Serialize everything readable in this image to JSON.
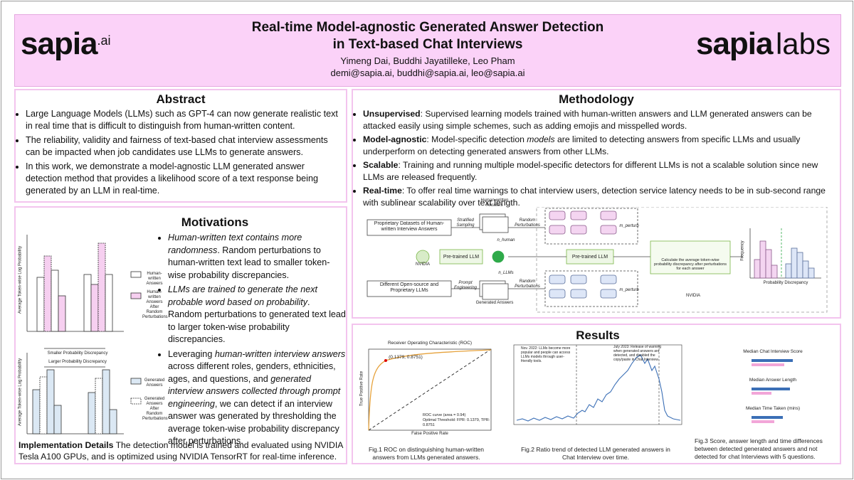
{
  "header": {
    "logo_left": "sapia",
    "logo_left_suffix": ".ai",
    "title_lines": [
      "Real-time Model-agnostic Generated Answer Detection",
      "in Text-based Chat Interviews"
    ],
    "authors": "Yimeng Dai, Buddhi Jayatilleke, Leo Pham",
    "emails": "demi@sapia.ai, buddhi@sapia.ai, leo@sapia.ai",
    "logo_right": "sapia",
    "logo_right_suffix": "labs"
  },
  "abstract": {
    "heading": "Abstract",
    "bullets": [
      "Large Language Models (LLMs) such as GPT-4 can now generate realistic text in real time that is difficult to distinguish from human-written content.",
      "The reliability, validity and fairness of text-based chat interview assessments can be impacted when job candidates use LLMs to generate answers.",
      "In this work, we demonstrate a model-agnostic LLM generated answer detection method that provides a likelihood score of a text response being generated by an LLM in real-time."
    ]
  },
  "motivations": {
    "heading": "Motivations",
    "figure": {
      "y_label": "Average Token-wise Log Probability",
      "legend_top": [
        "Human-written Answers",
        "Human-written Answers After Random Perturbations"
      ],
      "smaller": "Smaller Probability Discrepancy",
      "larger": "Larger Probability Discrepancy",
      "legend_bottom": [
        "Generated Answers",
        "Generated Answers After Random Perturbations"
      ]
    },
    "bullets": [
      [
        {
          "text": "Human-written text contains more randomness",
          "italic": true
        },
        {
          "text": ". Random perturbations to human-written text lead to smaller token-wise probability discrepancies."
        }
      ],
      [
        {
          "text": "LLMs are trained to generate the next probable word based on probability",
          "italic": true
        },
        {
          "text": ". Random perturbations to generated text lead to larger token-wise probability discrepancies."
        }
      ],
      [
        {
          "text": "Leveraging "
        },
        {
          "text": "human-written interview answers",
          "italic": true
        },
        {
          "text": " across different roles, genders, ethnicities, ages, and questions, and "
        },
        {
          "text": "generated interview answers collected through prompt engineering",
          "italic": true
        },
        {
          "text": ", we can detect if an interview answer was generated by thresholding the average token-wise probability discrepancy after perturbations."
        }
      ]
    ]
  },
  "implementation": {
    "term": "Implementation Details",
    "text": " The detection model is trained and evaluated using NVIDIA Tesla A100 GPUs, and is optimized using NVIDIA TensorRT for real-time inference."
  },
  "methodology": {
    "heading": "Methodology",
    "items": [
      {
        "term": "Unsupervised",
        "segments": [
          {
            "text": ": Supervised learning models trained with human-written answers and LLM generated answers can be attacked easily using simple schemes, such as adding emojis and misspelled words."
          }
        ]
      },
      {
        "term": "Model-agnostic",
        "segments": [
          {
            "text": ": Model-specific detection "
          },
          {
            "text": "models",
            "italic": true
          },
          {
            "text": " are limited to detecting answers from specific LLMs and usually underperform on detecting generated answers from other LLMs."
          }
        ]
      },
      {
        "term": "Scalable",
        "segments": [
          {
            "text": ": Training and running multiple model-specific detectors for different LLMs is not a scalable solution since new LLMs are released frequently."
          }
        ]
      },
      {
        "term": "Real-time",
        "segments": [
          {
            "text": ": To offer real time warnings to chat interview users, detection service latency needs to be in sub-second range with sublinear scalability over text length."
          }
        ]
      }
    ],
    "figure": {
      "datasets": "Proprietary Datasets of Human-written Interview Answers",
      "sampling": "Stratified Sampling",
      "human_answers": "Human-written Answers",
      "perturb_top": "Random Perturbations",
      "n_human": "n_human",
      "llm_left": "Pre-trained LLM",
      "n_llms": "n_LLMs",
      "llms": "Different Open-source and Proprietary LLMs",
      "prompt": "Prompt Engineering",
      "generated": "Generated Answers",
      "perturb_bottom": "Random Perturbations",
      "m_perturb": "m_perturb",
      "llm_right": "Pre-trained LLM",
      "calc": "Calculate the average token-wise probability discrepancy after perturbations for each answer",
      "hist_x": "Probability Discrepancy",
      "hist_y": "Frequency",
      "nvidia": "NVIDIA"
    }
  },
  "results": {
    "heading": "Results",
    "fig1": {
      "title": "Receiver Operating Characteristic (ROC)",
      "x_label": "False Positive Rate",
      "y_label": "True Positive Rate",
      "point": "(0.1379, 0.8751)",
      "legend_curve": "ROC curve (area = 0.94)",
      "legend_point": "Optimal Threshold: FPR: 0.1379, TPR: 0.8751",
      "caption": "Fig.1 ROC on distinguishing human-written answers from LLMs generated answers."
    },
    "fig2": {
      "note_left": "Nov. 2022: LLMs become more popular and people can access LLMs models through user-friendly tools.",
      "note_right": "July 2023: Release of warning when generated answers are detected, and disabled the copy/paste in Chat Interview",
      "caption": "Fig.2 Ratio trend of detected LLM generated answers in Chat Interview over time."
    },
    "fig3": {
      "titles": [
        "Median Chat Interview Score",
        "Median Answer Length",
        "Median Time Taken (mins)"
      ],
      "caption": "Fig.3 Score, answer length and time differences between detected generated answers and not detected for chat Interviews with 5 questions."
    }
  }
}
